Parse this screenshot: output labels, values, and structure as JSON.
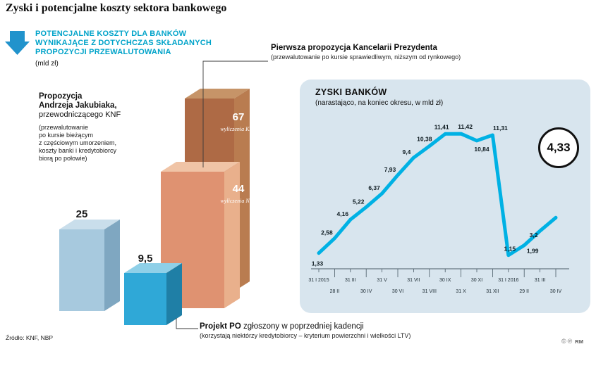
{
  "page_title": "Zyski i potencjalne koszty sektora bankowego",
  "colors": {
    "accent_cyan": "#00a3c9",
    "arrow_blue": "#2193cc",
    "line_cyan": "#00b1e4",
    "bar_light_blue": "#a7c9de",
    "bar_cyan": "#2fa8d7",
    "bar_salmon": "#df9271",
    "bar_copper": "#ae6a45",
    "panel_bg": "#d8e5ee"
  },
  "left": {
    "heading_lines": [
      "POTENCJALNE KOSZTY DLA BANKÓW",
      "WYNIKAJĄCE Z DOTYCHCZAS SKŁADANYCH",
      "PROPOZYCJI PRZEWALUTOWANIA"
    ],
    "heading_unit": "(mld zł)",
    "knf_proposal": {
      "line1": "Propozycja",
      "line2": "Andrzeja Jakubiaka,",
      "line3": "przewodniczącego KNF",
      "note": "(przewalutowanie\npo kursie bieżącym\nz częściowym umorzeniem,\nkoszty banki i kredytobiorcy\nbiorą po połowie)"
    },
    "president_proposal": {
      "title": "Pierwsza propozycja Kancelarii Prezydenta",
      "note": "(przewalutowanie po kursie sprawiedliwym, niższym od rynkowego)"
    },
    "po_proposal": {
      "bold": "Projekt PO",
      "rest": " zgłoszony w poprzedniej kadencji",
      "note": "(korzystają niektórzy kredytobiorcy – kryterium powierzchni i wielkości LTV)"
    },
    "source": "Źródło: KNF, NBP"
  },
  "right_panel": {
    "title": "ZYSKI BANKÓW",
    "subtitle": "(narastająco, na koniec okresu, w mld zł)"
  },
  "footer": {
    "copyright": "©",
    "phono": "℗",
    "rm": "RM"
  },
  "chart_data": [
    {
      "type": "bar",
      "title": "Potencjalne koszty dla banków wynikające z dotychczas składanych propozycji przewalutowania (mld zł)",
      "categories": [
        "Propozycja Andrzeja Jakubiaka, przewodniczącego KNF",
        "Projekt PO zgłoszony w poprzedniej kadencji",
        "Pierwsza propozycja Kancelarii Prezydenta – wyliczenia NBP",
        "Pierwsza propozycja Kancelarii Prezydenta – wyliczenia KNF"
      ],
      "values": [
        25,
        9.5,
        44,
        67
      ],
      "display_values": [
        "25",
        "9,5",
        "44",
        "67"
      ],
      "captions": [
        "",
        "",
        "wyliczenia NBP",
        "wyliczenia KNF"
      ]
    },
    {
      "type": "line",
      "title": "ZYSKI BANKÓW (narastająco, na koniec okresu, w mld zł)",
      "x": [
        "31 I 2015",
        "28 II",
        "31 III",
        "30 IV",
        "31 V",
        "30 VI",
        "31 VII",
        "31 VIII",
        "30 IX",
        "31 X",
        "30 XI",
        "31 XII",
        "31 I 2016",
        "29 II",
        "31 III",
        "30 IV"
      ],
      "values": [
        1.33,
        2.58,
        4.16,
        5.22,
        6.37,
        7.93,
        9.4,
        10.38,
        11.41,
        11.42,
        10.84,
        11.31,
        1.15,
        1.99,
        3.2,
        4.33
      ],
      "labels": [
        "1,33",
        "2,58",
        "4,16",
        "5,22",
        "6,37",
        "7,93",
        "9,4",
        "10,38",
        "11,41",
        "11,42",
        "10,84",
        "11,31",
        "1,15",
        "1,99",
        "3,2",
        "4,33"
      ],
      "ylim": [
        0,
        12
      ],
      "highlight": "4,33"
    }
  ]
}
